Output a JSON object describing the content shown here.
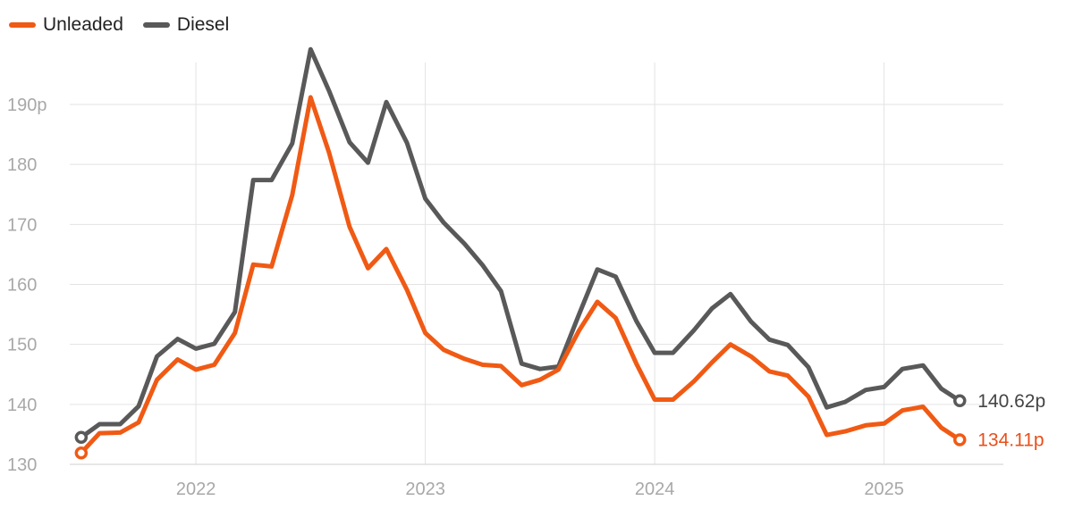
{
  "chart_data": {
    "type": "line",
    "title": "",
    "xlabel": "",
    "ylabel": "",
    "ylim": [
      130,
      197
    ],
    "yticks": [
      130,
      140,
      150,
      160,
      170,
      180,
      190
    ],
    "ytick_labels": [
      "130",
      "140",
      "150",
      "160",
      "170",
      "180",
      "190p"
    ],
    "xlim": [
      2021.45,
      2025.52
    ],
    "xticks": [
      2022,
      2023,
      2024,
      2025
    ],
    "xtick_labels": [
      "2022",
      "2023",
      "2024",
      "2025"
    ],
    "grid": true,
    "legend": "top-left",
    "series": [
      {
        "name": "Unleaded",
        "color": "#f05a14",
        "end_label": "134.11p",
        "x": [
          2021.5,
          2021.58,
          2021.67,
          2021.75,
          2021.83,
          2021.92,
          2022.0,
          2022.08,
          2022.17,
          2022.25,
          2022.33,
          2022.42,
          2022.5,
          2022.58,
          2022.67,
          2022.75,
          2022.83,
          2022.92,
          2023.0,
          2023.08,
          2023.17,
          2023.25,
          2023.33,
          2023.42,
          2023.5,
          2023.58,
          2023.67,
          2023.75,
          2023.83,
          2023.92,
          2024.0,
          2024.08,
          2024.17,
          2024.25,
          2024.33,
          2024.42,
          2024.5,
          2024.58,
          2024.67,
          2024.75,
          2024.83,
          2024.92,
          2025.0,
          2025.08,
          2025.17,
          2025.25,
          2025.33
        ],
        "values": [
          131.9,
          135.2,
          135.3,
          137.0,
          144.1,
          147.5,
          145.8,
          146.6,
          151.9,
          163.3,
          163.0,
          174.9,
          191.2,
          182.0,
          169.6,
          162.7,
          165.9,
          159.1,
          151.9,
          149.1,
          147.6,
          146.6,
          146.4,
          143.2,
          144.1,
          145.8,
          152.3,
          157.1,
          154.4,
          146.8,
          140.8,
          140.8,
          143.8,
          147.0,
          150.0,
          148.0,
          145.5,
          144.8,
          141.3,
          134.9,
          135.5,
          136.5,
          136.8,
          139.0,
          139.6,
          136.1,
          134.1
        ]
      },
      {
        "name": "Diesel",
        "color": "#595959",
        "end_label": "140.62p",
        "x": [
          2021.5,
          2021.58,
          2021.67,
          2021.75,
          2021.83,
          2021.92,
          2022.0,
          2022.08,
          2022.17,
          2022.25,
          2022.33,
          2022.42,
          2022.5,
          2022.58,
          2022.67,
          2022.75,
          2022.83,
          2022.92,
          2023.0,
          2023.08,
          2023.17,
          2023.25,
          2023.33,
          2023.42,
          2023.5,
          2023.58,
          2023.67,
          2023.75,
          2023.83,
          2023.92,
          2024.0,
          2024.08,
          2024.17,
          2024.25,
          2024.33,
          2024.42,
          2024.5,
          2024.58,
          2024.67,
          2024.75,
          2024.83,
          2024.92,
          2025.0,
          2025.08,
          2025.17,
          2025.25,
          2025.33
        ],
        "values": [
          134.5,
          136.7,
          136.7,
          139.7,
          148.0,
          150.9,
          149.3,
          150.1,
          155.4,
          177.4,
          177.4,
          183.5,
          199.2,
          192.3,
          183.7,
          180.3,
          190.4,
          183.6,
          174.3,
          170.3,
          166.8,
          163.2,
          158.9,
          146.8,
          145.9,
          146.3,
          155.0,
          162.5,
          161.3,
          153.9,
          148.6,
          148.6,
          152.3,
          156.0,
          158.4,
          153.8,
          150.8,
          149.9,
          146.2,
          139.5,
          140.4,
          142.4,
          142.9,
          145.9,
          146.5,
          142.6,
          140.6
        ]
      }
    ]
  }
}
